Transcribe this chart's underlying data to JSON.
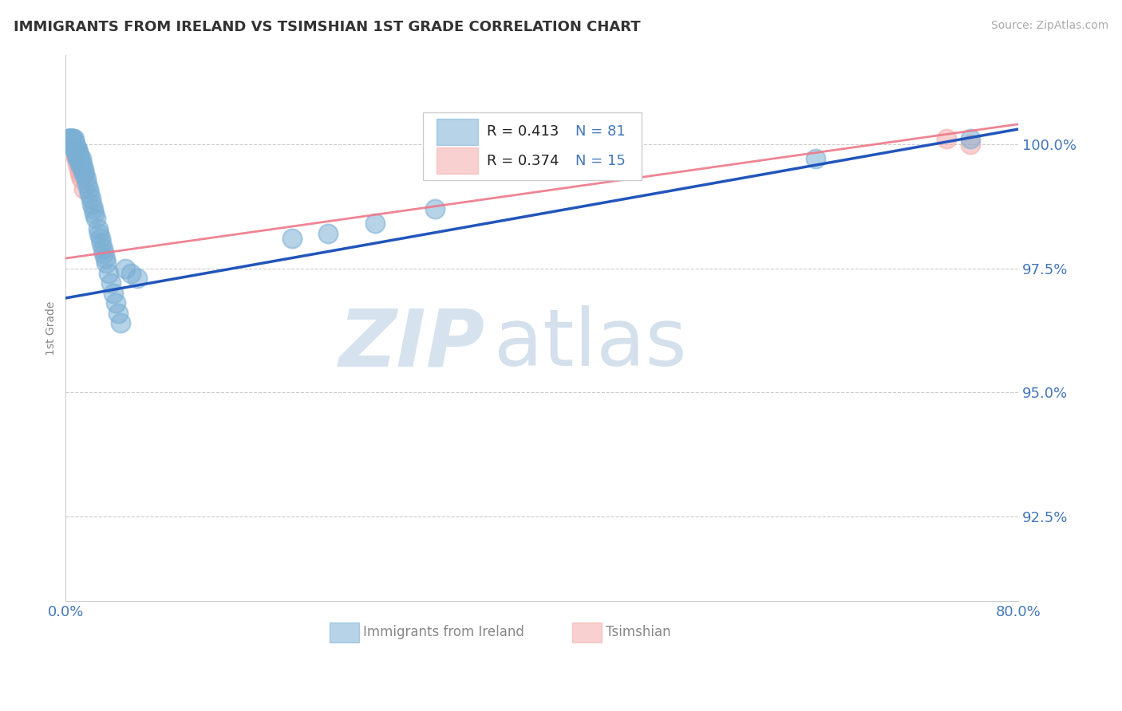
{
  "title": "IMMIGRANTS FROM IRELAND VS TSIMSHIAN 1ST GRADE CORRELATION CHART",
  "source": "Source: ZipAtlas.com",
  "ylabel": "1st Grade",
  "xlim": [
    0.0,
    0.8
  ],
  "ylim": [
    0.908,
    1.018
  ],
  "yticks": [
    0.925,
    0.95,
    0.975,
    1.0
  ],
  "ytick_labels": [
    "92.5%",
    "95.0%",
    "97.5%",
    "100.0%"
  ],
  "xtick_labels": [
    "0.0%",
    "80.0%"
  ],
  "legend_r_blue": "R = 0.413",
  "legend_n_blue": "N = 81",
  "legend_r_pink": "R = 0.374",
  "legend_n_pink": "N = 15",
  "blue_color": "#7BAFD4",
  "pink_color": "#F4AAAA",
  "blue_line_color": "#2255BB",
  "pink_line_color": "#EE7788",
  "axis_tick_color": "#4477BB",
  "watermark_zip_color": "#C5D8E8",
  "watermark_atlas_color": "#B8CCE0",
  "blue_dots_x": [
    0.002,
    0.003,
    0.003,
    0.003,
    0.004,
    0.004,
    0.004,
    0.004,
    0.004,
    0.005,
    0.005,
    0.005,
    0.005,
    0.005,
    0.006,
    0.006,
    0.006,
    0.006,
    0.006,
    0.007,
    0.007,
    0.007,
    0.007,
    0.007,
    0.008,
    0.008,
    0.008,
    0.008,
    0.008,
    0.009,
    0.009,
    0.009,
    0.009,
    0.01,
    0.01,
    0.01,
    0.01,
    0.011,
    0.011,
    0.011,
    0.012,
    0.012,
    0.013,
    0.013,
    0.014,
    0.014,
    0.015,
    0.015,
    0.016,
    0.017,
    0.018,
    0.019,
    0.02,
    0.021,
    0.022,
    0.023,
    0.024,
    0.025,
    0.027,
    0.028,
    0.029,
    0.03,
    0.031,
    0.032,
    0.033,
    0.034,
    0.036,
    0.038,
    0.04,
    0.042,
    0.044,
    0.046,
    0.05,
    0.055,
    0.06,
    0.19,
    0.22,
    0.26,
    0.31,
    0.63,
    0.76
  ],
  "blue_dots_y": [
    1.001,
    1.001,
    1.001,
    1.001,
    1.001,
    1.001,
    1.001,
    1.001,
    1.001,
    1.0,
    1.0,
    1.0,
    1.001,
    1.001,
    1.001,
    1.001,
    1.0,
    1.0,
    1.0,
    1.001,
    1.0,
    1.0,
    0.999,
    1.0,
    1.0,
    0.999,
    1.0,
    0.999,
    0.999,
    0.999,
    0.999,
    0.999,
    0.998,
    0.999,
    0.998,
    0.998,
    0.997,
    0.998,
    0.997,
    0.997,
    0.997,
    0.996,
    0.997,
    0.996,
    0.996,
    0.995,
    0.995,
    0.994,
    0.994,
    0.993,
    0.992,
    0.991,
    0.99,
    0.989,
    0.988,
    0.987,
    0.986,
    0.985,
    0.983,
    0.982,
    0.981,
    0.98,
    0.979,
    0.978,
    0.977,
    0.976,
    0.974,
    0.972,
    0.97,
    0.968,
    0.966,
    0.964,
    0.975,
    0.974,
    0.973,
    0.981,
    0.982,
    0.984,
    0.987,
    0.997,
    1.001
  ],
  "pink_dots_x": [
    0.003,
    0.004,
    0.005,
    0.005,
    0.006,
    0.007,
    0.008,
    0.009,
    0.01,
    0.011,
    0.012,
    0.013,
    0.015,
    0.74,
    0.76
  ],
  "pink_dots_y": [
    1.001,
    1.0,
    0.999,
    1.001,
    0.999,
    0.998,
    0.998,
    0.997,
    0.996,
    0.995,
    0.994,
    0.993,
    0.991,
    1.001,
    1.0
  ],
  "blue_trend_x": [
    0.0,
    0.8
  ],
  "blue_trend_y": [
    0.969,
    1.003
  ],
  "pink_trend_x": [
    0.0,
    0.8
  ],
  "pink_trend_y": [
    0.977,
    1.004
  ]
}
